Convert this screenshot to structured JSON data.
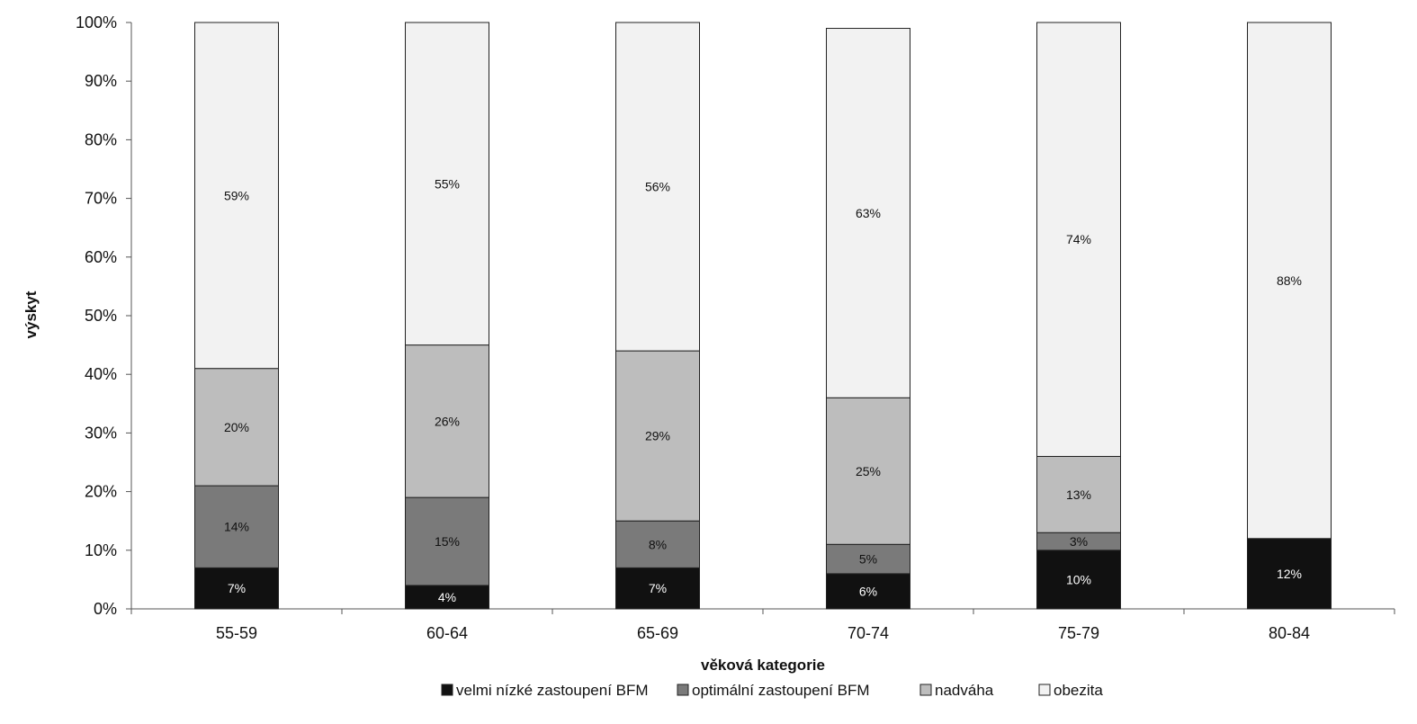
{
  "chart_data": {
    "type": "bar",
    "stacked": true,
    "normalized": true,
    "categories": [
      "55-59",
      "60-64",
      "65-69",
      "70-74",
      "75-79",
      "80-84"
    ],
    "series": [
      {
        "name": "velmi nízké zastoupení BFM",
        "color": "#111111",
        "values": [
          7,
          4,
          7,
          6,
          10,
          12
        ],
        "labels": [
          "7%",
          "4%",
          "7%",
          "6%",
          "10%",
          "12%"
        ],
        "label_color": "#ffffff"
      },
      {
        "name": "optimální zastoupení BFM",
        "color": "#7a7a7a",
        "values": [
          14,
          15,
          8,
          5,
          3,
          0
        ],
        "labels": [
          "14%",
          "15%",
          "8%",
          "5%",
          "3%",
          ""
        ],
        "label_color": "#111111"
      },
      {
        "name": "nadváha",
        "color": "#bdbdbd",
        "values": [
          20,
          26,
          29,
          25,
          13,
          0
        ],
        "labels": [
          "20%",
          "26%",
          "29%",
          "25%",
          "13%",
          ""
        ],
        "label_color": "#111111"
      },
      {
        "name": "obezita",
        "color": "#f2f2f2",
        "values": [
          59,
          55,
          56,
          63,
          74,
          88
        ],
        "labels": [
          "59%",
          "55%",
          "56%",
          "63%",
          "74%",
          "88%"
        ],
        "label_color": "#111111"
      }
    ],
    "title": "",
    "xlabel": "věková kategorie",
    "ylabel": "výskyt",
    "ylim": [
      0,
      100
    ],
    "yticks": [
      "0%",
      "10%",
      "20%",
      "30%",
      "40%",
      "50%",
      "60%",
      "70%",
      "80%",
      "90%",
      "100%"
    ],
    "grid": false,
    "legend_position": "bottom"
  }
}
